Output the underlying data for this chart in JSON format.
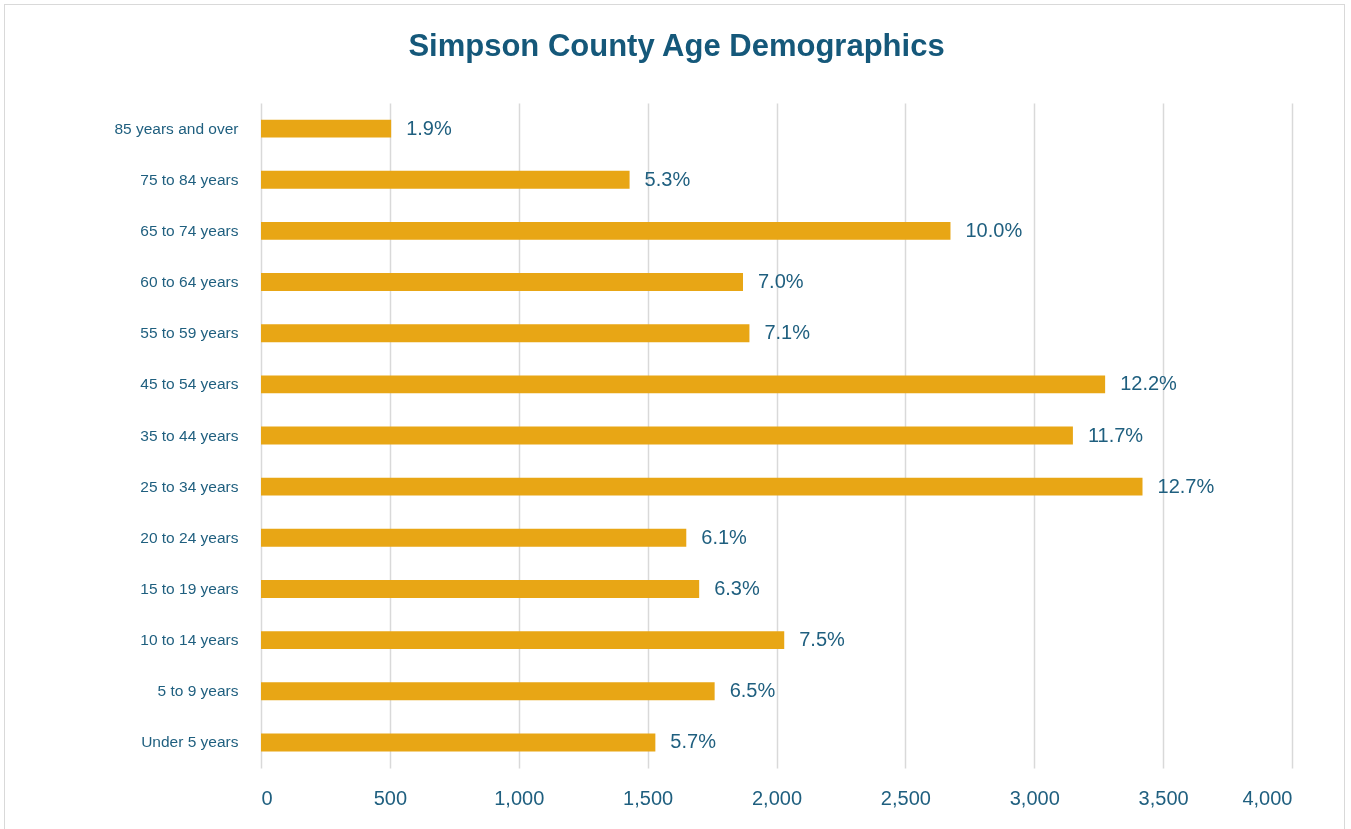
{
  "chart_data": {
    "type": "bar",
    "orientation": "horizontal",
    "title": "Simpson County Age Demographics",
    "categories": [
      "85 years and over",
      "75 to 84 years",
      "65 to 74 years",
      "60 to 64 years",
      "55 to 59 years",
      "45 to 54 years",
      "35 to 44 years",
      "25 to 34 years",
      "20 to 24 years",
      "15 to 19 years",
      "10 to 14 years",
      "5 to 9 years",
      "Under 5 years"
    ],
    "values": [
      505,
      1430,
      2675,
      1870,
      1895,
      3275,
      3150,
      3420,
      1650,
      1700,
      2030,
      1760,
      1530
    ],
    "color": "#e8a615",
    "annotations": [
      {
        "text": "1.9%",
        "x": 505,
        "y": "85 years and over"
      },
      {
        "text": "5.3%",
        "x": 1430,
        "y": "75 to 84 years"
      },
      {
        "text": "10.0%",
        "x": 2675,
        "y": "65 to 74 years"
      },
      {
        "text": "7.0%",
        "x": 1870,
        "y": "60 to 64 years"
      },
      {
        "text": "7.1%",
        "x": 1895,
        "y": "55 to 59 years"
      },
      {
        "text": "12.2%",
        "x": 3275,
        "y": "45 to 54 years"
      },
      {
        "text": "11.7%",
        "x": 3150,
        "y": "35 to 44 years"
      },
      {
        "text": "12.7%",
        "x": 3420,
        "y": "25 to 34 years"
      },
      {
        "text": "6.1%",
        "x": 1650,
        "y": "20 to 24 years"
      },
      {
        "text": "6.3%",
        "x": 1700,
        "y": "15 to 19 years"
      },
      {
        "text": "7.5%",
        "x": 2030,
        "y": "10 to 14 years"
      },
      {
        "text": "6.5%",
        "x": 1760,
        "y": "5 to 9 years"
      },
      {
        "text": "5.7%",
        "x": 1530,
        "y": "Under 5 years"
      }
    ],
    "xlim": [
      0,
      4000
    ],
    "xticks": [
      0,
      500,
      {
        "value": 1000,
        "label": "1,000"
      },
      {
        "value": 1500,
        "label": "1,500"
      },
      {
        "value": 2000,
        "label": "2,000"
      },
      {
        "value": 2500,
        "label": "2,500"
      },
      {
        "value": 3000,
        "label": "3,000"
      },
      {
        "value": 3500,
        "label": "3,500"
      },
      {
        "value": 4000,
        "label": "4,000"
      }
    ],
    "grid": "x"
  }
}
